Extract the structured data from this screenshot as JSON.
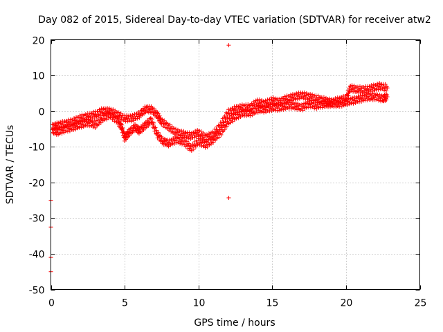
{
  "chart_data": {
    "type": "scatter",
    "title": "Day 082 of 2015, Sidereal Day-to-day VTEC variation (SDTVAR) for receiver atw2",
    "xlabel": "GPS time / hours",
    "ylabel": "SDTVAR / TECUs",
    "xlim": [
      0,
      25
    ],
    "ylim": [
      -50,
      20
    ],
    "xticks": [
      0,
      5,
      10,
      15,
      20,
      25
    ],
    "yticks": [
      -50,
      -40,
      -30,
      -20,
      -10,
      0,
      10,
      20
    ],
    "grid": true,
    "marker": "+",
    "color": "#ff0000",
    "series": [
      {
        "name": "SDTVAR",
        "trace_low": [
          [
            0.1,
            -5.5
          ],
          [
            0.5,
            -5.8
          ],
          [
            1.0,
            -5.0
          ],
          [
            1.5,
            -4.5
          ],
          [
            2.0,
            -3.8
          ],
          [
            2.5,
            -3.2
          ],
          [
            3.0,
            -3.8
          ],
          [
            3.5,
            -2.0
          ],
          [
            4.0,
            -1.0
          ],
          [
            4.5,
            -2.5
          ],
          [
            4.8,
            -4.5
          ],
          [
            5.0,
            -7.5
          ],
          [
            5.3,
            -6.0
          ],
          [
            5.7,
            -4.5
          ],
          [
            6.0,
            -5.5
          ],
          [
            6.4,
            -4.0
          ],
          [
            6.8,
            -2.5
          ],
          [
            7.2,
            -6.5
          ],
          [
            7.6,
            -8.5
          ],
          [
            8.0,
            -9.0
          ],
          [
            8.5,
            -8.0
          ],
          [
            9.0,
            -8.5
          ],
          [
            9.5,
            -10.5
          ],
          [
            10.0,
            -8.5
          ],
          [
            10.5,
            -9.5
          ],
          [
            11.0,
            -8.0
          ],
          [
            11.5,
            -6.0
          ],
          [
            12.0,
            -3.0
          ],
          [
            12.5,
            -1.5
          ],
          [
            13.0,
            -0.5
          ],
          [
            13.5,
            -0.5
          ],
          [
            14.0,
            0.5
          ],
          [
            14.5,
            0.5
          ],
          [
            15.0,
            1.0
          ],
          [
            15.5,
            1.0
          ],
          [
            16.0,
            1.5
          ],
          [
            16.5,
            1.5
          ],
          [
            17.0,
            1.0
          ],
          [
            17.5,
            2.0
          ],
          [
            18.0,
            1.5
          ],
          [
            18.5,
            2.0
          ],
          [
            19.0,
            2.0
          ],
          [
            19.5,
            2.0
          ],
          [
            20.0,
            2.5
          ],
          [
            20.5,
            3.0
          ],
          [
            21.0,
            3.5
          ],
          [
            21.5,
            4.0
          ],
          [
            22.0,
            4.0
          ],
          [
            22.5,
            3.5
          ],
          [
            22.8,
            4.0
          ]
        ],
        "trace_high": [
          [
            0.1,
            -4.5
          ],
          [
            0.5,
            -4.0
          ],
          [
            1.0,
            -3.5
          ],
          [
            1.5,
            -3.0
          ],
          [
            2.0,
            -2.0
          ],
          [
            2.5,
            -1.5
          ],
          [
            3.0,
            -1.0
          ],
          [
            3.5,
            0.0
          ],
          [
            4.0,
            0.0
          ],
          [
            4.5,
            -1.0
          ],
          [
            5.0,
            -2.0
          ],
          [
            5.5,
            -2.0
          ],
          [
            6.0,
            -1.0
          ],
          [
            6.4,
            0.5
          ],
          [
            6.8,
            0.5
          ],
          [
            7.2,
            -1.0
          ],
          [
            7.5,
            -3.0
          ],
          [
            8.0,
            -4.5
          ],
          [
            8.5,
            -6.0
          ],
          [
            9.0,
            -6.5
          ],
          [
            9.5,
            -7.0
          ],
          [
            10.0,
            -6.0
          ],
          [
            10.5,
            -7.5
          ],
          [
            11.0,
            -6.5
          ],
          [
            11.5,
            -4.0
          ],
          [
            12.0,
            -0.5
          ],
          [
            12.5,
            0.5
          ],
          [
            13.0,
            1.0
          ],
          [
            13.5,
            1.0
          ],
          [
            14.0,
            2.5
          ],
          [
            14.5,
            2.0
          ],
          [
            15.0,
            3.0
          ],
          [
            15.5,
            2.5
          ],
          [
            16.0,
            3.5
          ],
          [
            16.5,
            4.0
          ],
          [
            17.0,
            4.5
          ],
          [
            17.5,
            4.0
          ],
          [
            18.0,
            3.5
          ],
          [
            18.5,
            3.0
          ],
          [
            19.0,
            2.5
          ],
          [
            19.5,
            3.0
          ],
          [
            20.0,
            3.5
          ],
          [
            20.3,
            6.5
          ],
          [
            20.8,
            6.0
          ],
          [
            21.3,
            6.0
          ],
          [
            21.8,
            6.5
          ],
          [
            22.3,
            7.0
          ],
          [
            22.8,
            6.5
          ]
        ],
        "outliers": [
          [
            0.0,
            -25.0
          ],
          [
            0.0,
            -32.5
          ],
          [
            0.0,
            -41.0
          ],
          [
            0.0,
            -45.0
          ],
          [
            12.05,
            18.5
          ],
          [
            12.05,
            -24.3
          ]
        ]
      }
    ]
  }
}
